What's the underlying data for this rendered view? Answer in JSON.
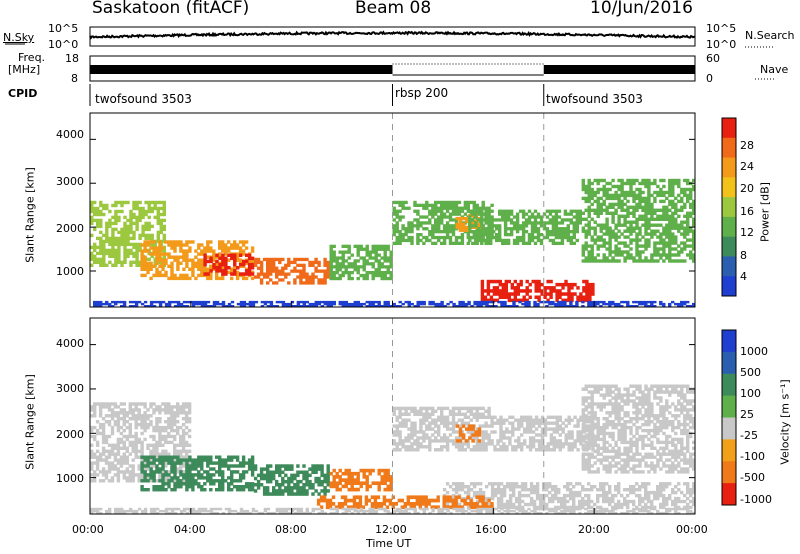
{
  "header": {
    "station": "Saskatoon (fitACF)",
    "beam": "Beam 08",
    "date": "10/Jun/2016"
  },
  "noise_panel": {
    "left_label": "N.Sky",
    "right_label": "N.Search",
    "left_ticks": [
      "10^5",
      "10^0"
    ],
    "right_ticks": [
      "10^5",
      "10^0"
    ]
  },
  "freq_panel": {
    "left_label_1": "Freq.",
    "left_label_2": "[MHz]",
    "right_label": "Nave",
    "left_ticks": [
      "18",
      "8"
    ],
    "right_ticks": [
      "60",
      "0"
    ]
  },
  "cpid_panel": {
    "label": "CPID",
    "segments": [
      {
        "name": "twofsound 3503",
        "start_hour": 0,
        "end_hour": 12
      },
      {
        "name": "rbsp 200",
        "start_hour": 12,
        "end_hour": 18
      },
      {
        "name": "twofsound 3503",
        "start_hour": 18,
        "end_hour": 24
      }
    ]
  },
  "x_axis": {
    "label": "Time UT",
    "ticks": [
      "00:00",
      "04:00",
      "08:00",
      "12:00",
      "16:00",
      "20:00",
      "00:00"
    ]
  },
  "power_panel": {
    "ylabel": "Slant Range [km]",
    "yticks": [
      "4000",
      "3000",
      "2000",
      "1000"
    ],
    "colorbar_label": "Power [dB]",
    "colorbar_ticks": [
      "28",
      "24",
      "20",
      "16",
      "12",
      "8",
      "4"
    ]
  },
  "velocity_panel": {
    "ylabel": "Slant Range [km]",
    "yticks": [
      "4000",
      "3000",
      "2000",
      "1000"
    ],
    "colorbar_label": "Velocity [m s⁻¹]",
    "colorbar_ticks": [
      "1000",
      "500",
      "100",
      "25",
      "-25",
      "-100",
      "-500",
      "-1000"
    ]
  },
  "chart_data": [
    {
      "type": "heatmap",
      "title": "Power",
      "xlabel": "Time UT",
      "ylabel": "Slant Range [km]",
      "xlim": [
        0,
        24
      ],
      "ylim": [
        180,
        4600
      ],
      "colorbar_ticks": [
        4,
        8,
        12,
        16,
        20,
        24,
        28
      ],
      "colors": [
        "#1f3fd0",
        "#2a5fb0",
        "#3d8a5a",
        "#5fb04a",
        "#9cc840",
        "#f2c21a",
        "#f39a1a",
        "#f06a1a",
        "#e82010"
      ],
      "regions": [
        {
          "t0": 0.0,
          "t1": 3.0,
          "r0": 1100,
          "r1": 2600,
          "value": 16
        },
        {
          "t0": 2.0,
          "t1": 6.5,
          "r0": 800,
          "r1": 1700,
          "value": 22
        },
        {
          "t0": 4.5,
          "t1": 6.5,
          "r0": 900,
          "r1": 1400,
          "value": 28
        },
        {
          "t0": 6.5,
          "t1": 9.5,
          "r0": 700,
          "r1": 1300,
          "value": 24
        },
        {
          "t0": 9.5,
          "t1": 12.0,
          "r0": 800,
          "r1": 1600,
          "value": 14
        },
        {
          "t0": 12.0,
          "t1": 16.0,
          "r0": 1600,
          "r1": 2600,
          "value": 12
        },
        {
          "t0": 14.5,
          "t1": 15.5,
          "r0": 1900,
          "r1": 2300,
          "value": 22
        },
        {
          "t0": 15.0,
          "t1": 19.5,
          "r0": 1600,
          "r1": 2400,
          "value": 14
        },
        {
          "t0": 19.5,
          "t1": 24.0,
          "r0": 1200,
          "r1": 3100,
          "value": 12
        },
        {
          "t0": 15.5,
          "t1": 20.0,
          "r0": 300,
          "r1": 800,
          "value": 28
        },
        {
          "t0": 0.0,
          "t1": 24.0,
          "r0": 180,
          "r1": 320,
          "value": 6
        }
      ]
    },
    {
      "type": "heatmap",
      "title": "Velocity",
      "xlabel": "Time UT",
      "ylabel": "Slant Range [km]",
      "xlim": [
        0,
        24
      ],
      "ylim": [
        180,
        4600
      ],
      "colorbar_ticks": [
        1000,
        500,
        100,
        25,
        -25,
        -100,
        -500,
        -1000
      ],
      "colors": [
        "#1f3fd0",
        "#2a5fb0",
        "#3d8a5a",
        "#5fb04a",
        "#c8c8c8",
        "#f2a01a",
        "#f07a1a",
        "#e82010"
      ],
      "regions": [
        {
          "t0": 0.0,
          "t1": 4.0,
          "r0": 900,
          "r1": 2700,
          "value": 0
        },
        {
          "t0": 2.0,
          "t1": 6.5,
          "r0": 700,
          "r1": 1500,
          "value": 300
        },
        {
          "t0": 6.5,
          "t1": 9.5,
          "r0": 600,
          "r1": 1300,
          "value": 150
        },
        {
          "t0": 9.5,
          "t1": 12.0,
          "r0": 700,
          "r1": 1200,
          "value": -200
        },
        {
          "t0": 12.0,
          "t1": 16.0,
          "r0": 1600,
          "r1": 2600,
          "value": 0
        },
        {
          "t0": 14.5,
          "t1": 15.5,
          "r0": 1800,
          "r1": 2200,
          "value": -400
        },
        {
          "t0": 16.0,
          "t1": 20.0,
          "r0": 1600,
          "r1": 2400,
          "value": 0
        },
        {
          "t0": 19.5,
          "t1": 24.0,
          "r0": 1100,
          "r1": 3100,
          "value": 0
        },
        {
          "t0": 14.0,
          "t1": 24.0,
          "r0": 300,
          "r1": 900,
          "value": 0
        },
        {
          "t0": 9.0,
          "t1": 16.0,
          "r0": 300,
          "r1": 600,
          "value": -150
        },
        {
          "t0": 0.0,
          "t1": 24.0,
          "r0": 180,
          "r1": 320,
          "value": 0
        }
      ]
    }
  ]
}
